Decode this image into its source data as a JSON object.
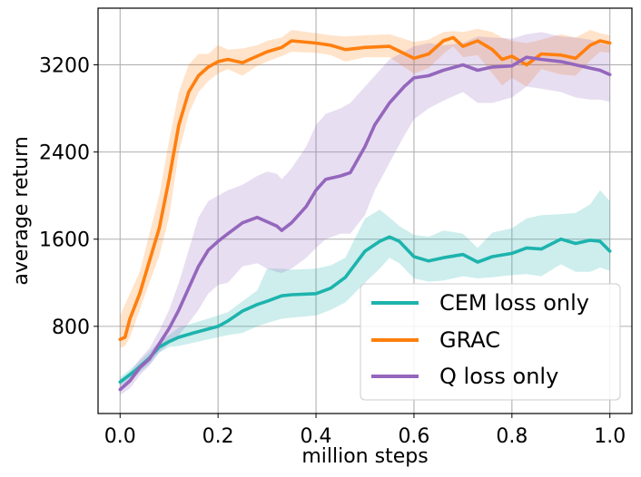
{
  "chart_data": {
    "type": "line",
    "title": "",
    "xlabel": "million steps",
    "ylabel": "average return",
    "xlim": [
      -0.045,
      1.045
    ],
    "ylim": [
      0,
      3720
    ],
    "x_ticks": [
      0.0,
      0.2,
      0.4,
      0.6,
      0.8,
      1.0
    ],
    "x_tick_labels": [
      "0.0",
      "0.2",
      "0.4",
      "0.6",
      "0.8",
      "1.0"
    ],
    "y_ticks": [
      800,
      1600,
      2400,
      3200
    ],
    "y_tick_labels": [
      "800",
      "1600",
      "2400",
      "3200"
    ],
    "grid": true,
    "legend_position": "bottom-right",
    "series": [
      {
        "name": "CEM loss only",
        "color": "#1db3ad",
        "x": [
          0.0,
          0.03,
          0.06,
          0.08,
          0.1,
          0.12,
          0.15,
          0.2,
          0.22,
          0.25,
          0.28,
          0.3,
          0.33,
          0.35,
          0.4,
          0.43,
          0.46,
          0.5,
          0.53,
          0.55,
          0.57,
          0.6,
          0.63,
          0.66,
          0.7,
          0.73,
          0.76,
          0.8,
          0.83,
          0.86,
          0.9,
          0.93,
          0.96,
          0.98,
          1.0
        ],
        "values": [
          290,
          390,
          510,
          610,
          660,
          700,
          740,
          800,
          850,
          940,
          1000,
          1030,
          1080,
          1090,
          1100,
          1150,
          1250,
          1490,
          1580,
          1620,
          1580,
          1440,
          1400,
          1430,
          1460,
          1390,
          1440,
          1470,
          1520,
          1510,
          1600,
          1560,
          1590,
          1580,
          1490
        ],
        "upper": [
          330,
          440,
          570,
          660,
          720,
          790,
          830,
          900,
          930,
          1030,
          1130,
          1330,
          1330,
          1320,
          1330,
          1360,
          1430,
          1790,
          1870,
          1800,
          1720,
          1640,
          1620,
          1680,
          1650,
          1520,
          1660,
          1700,
          1790,
          1820,
          1830,
          1840,
          1920,
          2050,
          1950
        ],
        "lower": [
          250,
          340,
          450,
          560,
          610,
          620,
          650,
          700,
          720,
          740,
          800,
          830,
          870,
          880,
          900,
          950,
          1020,
          1200,
          1330,
          1430,
          1380,
          1240,
          1210,
          1220,
          1260,
          1240,
          1250,
          1270,
          1280,
          1260,
          1370,
          1300,
          1300,
          1340,
          1310
        ]
      },
      {
        "name": "GRAC",
        "color": "#ff7f0e",
        "x": [
          0.0,
          0.01,
          0.02,
          0.04,
          0.06,
          0.08,
          0.1,
          0.12,
          0.14,
          0.16,
          0.18,
          0.2,
          0.22,
          0.25,
          0.28,
          0.3,
          0.33,
          0.35,
          0.4,
          0.43,
          0.46,
          0.5,
          0.55,
          0.6,
          0.63,
          0.66,
          0.68,
          0.7,
          0.73,
          0.76,
          0.78,
          0.8,
          0.83,
          0.86,
          0.9,
          0.93,
          0.96,
          0.98,
          1.0
        ],
        "values": [
          680,
          700,
          870,
          1100,
          1400,
          1700,
          2150,
          2650,
          2950,
          3100,
          3180,
          3230,
          3250,
          3220,
          3280,
          3320,
          3360,
          3420,
          3400,
          3380,
          3340,
          3360,
          3370,
          3260,
          3300,
          3420,
          3450,
          3370,
          3420,
          3340,
          3250,
          3280,
          3200,
          3300,
          3290,
          3260,
          3380,
          3420,
          3400
        ],
        "upper": [
          900,
          1000,
          1100,
          1300,
          1650,
          2000,
          2500,
          2950,
          3200,
          3300,
          3300,
          3380,
          3340,
          3350,
          3380,
          3420,
          3450,
          3520,
          3490,
          3470,
          3460,
          3470,
          3480,
          3410,
          3430,
          3500,
          3510,
          3500,
          3530,
          3500,
          3450,
          3420,
          3400,
          3430,
          3480,
          3450,
          3520,
          3490,
          3470
        ],
        "lower": [
          600,
          620,
          700,
          950,
          1200,
          1450,
          1800,
          2400,
          2750,
          2950,
          3050,
          3120,
          3160,
          3100,
          3190,
          3230,
          3280,
          3320,
          3310,
          3290,
          3230,
          3270,
          3270,
          3120,
          3170,
          3300,
          3370,
          3270,
          3290,
          3120,
          3010,
          3080,
          3000,
          3160,
          3110,
          3100,
          3240,
          3320,
          3310
        ]
      },
      {
        "name": "Q loss only",
        "color": "#9467bd",
        "x": [
          0.0,
          0.02,
          0.04,
          0.06,
          0.08,
          0.1,
          0.12,
          0.14,
          0.16,
          0.18,
          0.2,
          0.22,
          0.25,
          0.28,
          0.3,
          0.32,
          0.33,
          0.35,
          0.38,
          0.4,
          0.42,
          0.45,
          0.47,
          0.5,
          0.52,
          0.55,
          0.58,
          0.6,
          0.63,
          0.66,
          0.7,
          0.73,
          0.76,
          0.8,
          0.83,
          0.86,
          0.9,
          0.93,
          0.96,
          0.98,
          1.0
        ],
        "values": [
          220,
          300,
          420,
          500,
          640,
          780,
          950,
          1150,
          1350,
          1500,
          1580,
          1650,
          1750,
          1800,
          1760,
          1720,
          1680,
          1750,
          1900,
          2050,
          2150,
          2180,
          2210,
          2450,
          2650,
          2850,
          3000,
          3080,
          3100,
          3150,
          3200,
          3150,
          3180,
          3190,
          3270,
          3250,
          3230,
          3200,
          3170,
          3150,
          3110
        ],
        "upper": [
          300,
          380,
          500,
          600,
          760,
          950,
          1200,
          1500,
          1800,
          1950,
          2000,
          2050,
          2100,
          2180,
          2220,
          2200,
          2150,
          2250,
          2450,
          2650,
          2750,
          2800,
          2850,
          3000,
          3100,
          3250,
          3320,
          3370,
          3400,
          3380,
          3400,
          3460,
          3450,
          3440,
          3480,
          3500,
          3460,
          3450,
          3430,
          3400,
          3380
        ],
        "lower": [
          170,
          230,
          350,
          440,
          560,
          640,
          720,
          830,
          950,
          1100,
          1180,
          1200,
          1350,
          1380,
          1330,
          1300,
          1290,
          1330,
          1430,
          1520,
          1600,
          1650,
          1650,
          1820,
          2050,
          2300,
          2550,
          2700,
          2800,
          2870,
          2950,
          2850,
          2850,
          2900,
          3000,
          2980,
          2950,
          2900,
          2880,
          2880,
          2860
        ]
      }
    ]
  }
}
